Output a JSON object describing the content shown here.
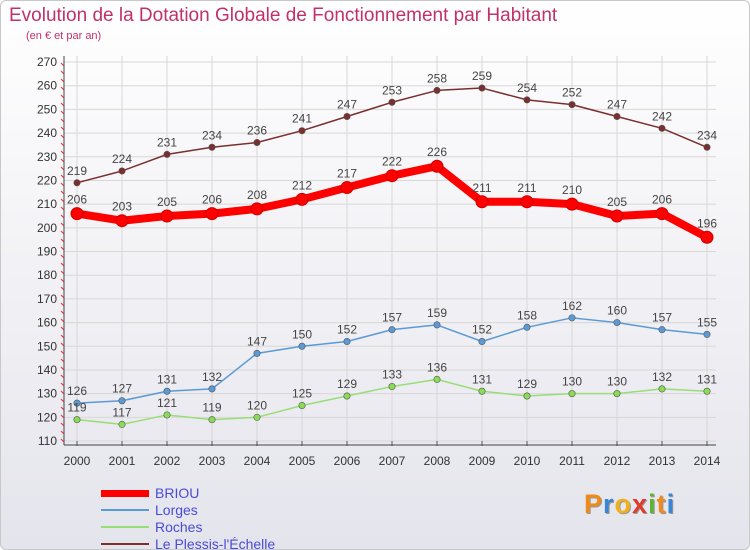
{
  "title": "Evolution de la Dotation Globale de Fonctionnement par Habitant",
  "subtitle": "(en € et par an)",
  "logo_text": "Proxiti",
  "chart_data": {
    "type": "line",
    "title": "Evolution de la Dotation Globale de Fonctionnement par Habitant",
    "subtitle": "(en € et par an)",
    "x": [
      "2000",
      "2001",
      "2002",
      "2003",
      "2004",
      "2005",
      "2006",
      "2007",
      "2008",
      "2009",
      "2010",
      "2011",
      "2012",
      "2013",
      "2014"
    ],
    "ylim": [
      110,
      270
    ],
    "yticks": [
      110,
      120,
      130,
      140,
      150,
      160,
      170,
      180,
      190,
      200,
      210,
      220,
      230,
      240,
      250,
      260,
      270
    ],
    "grid": true,
    "legend_position": "bottom-left",
    "series": [
      {
        "name": "BRIOU",
        "color": "#ff0000",
        "marker": "#ff0000",
        "values": [
          206,
          203,
          205,
          206,
          208,
          212,
          217,
          222,
          226,
          211,
          211,
          210,
          205,
          206,
          196
        ]
      },
      {
        "name": "Lorges",
        "color": "#5a9ad6",
        "marker": "#5a9ad6",
        "values": [
          126,
          127,
          131,
          132,
          147,
          150,
          152,
          157,
          159,
          152,
          158,
          162,
          160,
          157,
          155
        ]
      },
      {
        "name": "Roches",
        "color": "#99dd77",
        "marker": "#88dd55",
        "values": [
          119,
          117,
          121,
          119,
          120,
          125,
          129,
          133,
          136,
          131,
          129,
          130,
          130,
          132,
          131
        ]
      },
      {
        "name": "Le Plessis-l'Échelle",
        "color": "#7a2e2e",
        "marker": "#7a2e2e",
        "values": [
          219,
          224,
          231,
          234,
          236,
          241,
          247,
          253,
          258,
          259,
          254,
          252,
          247,
          242,
          234
        ]
      }
    ]
  }
}
